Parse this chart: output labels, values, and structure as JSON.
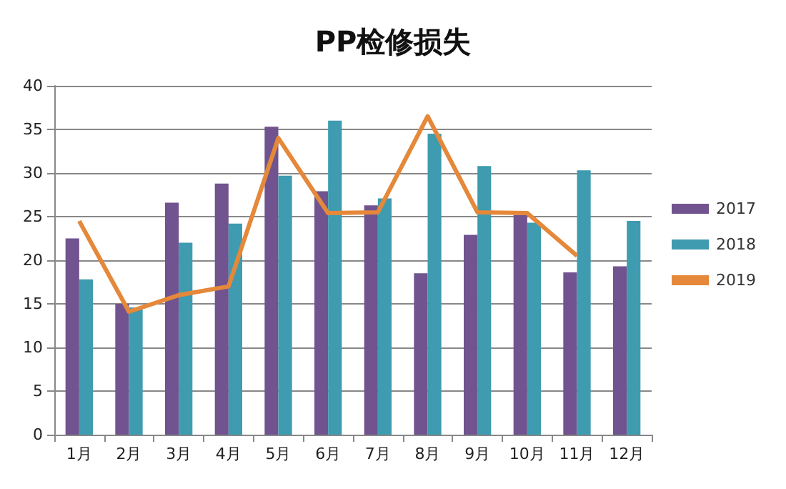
{
  "chart_data": {
    "type": "bar",
    "title": "PP检修损失",
    "categories": [
      "1月",
      "2月",
      "3月",
      "4月",
      "5月",
      "6月",
      "7月",
      "8月",
      "9月",
      "10月",
      "11月",
      "12月"
    ],
    "series": [
      {
        "name": "2017",
        "color": "#70538f",
        "values": [
          22.5,
          15.0,
          26.6,
          28.8,
          35.3,
          27.9,
          26.3,
          18.5,
          22.9,
          25.2,
          18.6,
          19.3
        ]
      },
      {
        "name": "2018",
        "color": "#3e9bb0",
        "values": [
          17.8,
          14.6,
          22.0,
          24.2,
          29.7,
          36.0,
          27.1,
          34.5,
          30.8,
          24.3,
          30.3,
          24.5
        ]
      },
      {
        "name": "2019",
        "type": "line",
        "color": "#e5883a",
        "values": [
          24.5,
          14.1,
          16.0,
          17.0,
          34.0,
          25.4,
          25.5,
          36.5,
          25.5,
          25.4,
          20.5,
          null
        ]
      }
    ],
    "ylim": [
      0,
      40
    ],
    "yticks": [
      0,
      5,
      10,
      15,
      20,
      25,
      30,
      35,
      40
    ],
    "grid": "y",
    "legend": "right",
    "marker": "none"
  }
}
